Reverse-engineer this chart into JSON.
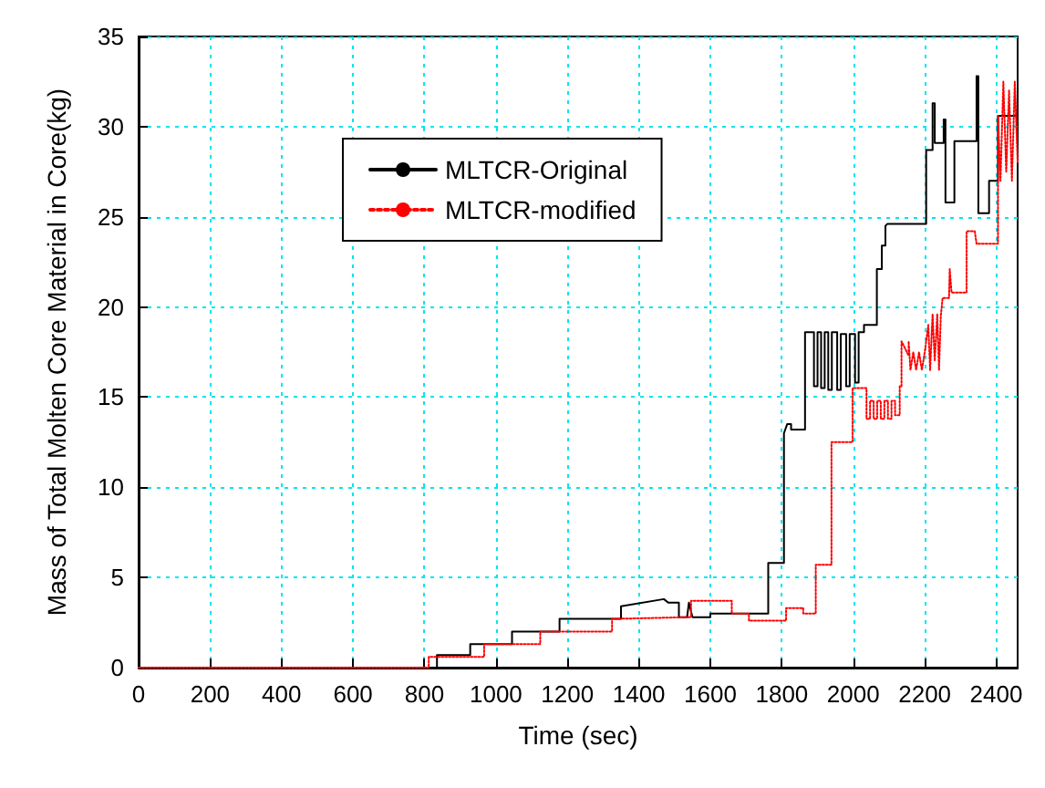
{
  "chart_data": {
    "type": "line",
    "xlabel": "Time (sec)",
    "ylabel": "Mass of Total Molten Core Material in Core(kg)",
    "xlim": [
      0,
      2460
    ],
    "xticks": [
      0,
      200,
      400,
      600,
      800,
      1000,
      1200,
      1400,
      1600,
      1800,
      2000,
      2200,
      2400
    ],
    "ylim": [
      0,
      35
    ],
    "yticks": [
      0,
      5,
      10,
      15,
      20,
      25,
      30,
      35
    ],
    "grid": true,
    "legend": "top",
    "marker": "none",
    "series": [
      {
        "name": "MLTCR-Original",
        "color": "#000000",
        "line_style": "solid",
        "x": [
          0,
          835,
          835,
          928,
          928,
          1045,
          1045,
          1178,
          1178,
          1350,
          1350,
          1470,
          1482,
          1512,
          1512,
          1535,
          1540,
          1550,
          1600,
          1600,
          1762,
          1762,
          1806,
          1806,
          1815,
          1826,
          1826,
          1865,
          1865,
          1890,
          1890,
          1900,
          1900,
          1910,
          1910,
          1920,
          1920,
          1930,
          1930,
          1940,
          1940,
          1955,
          1955,
          1965,
          1965,
          1980,
          1980,
          1990,
          1990,
          2005,
          2005,
          2015,
          2015,
          2030,
          2030,
          2066,
          2066,
          2080,
          2080,
          2090,
          2090,
          2095,
          2204,
          2204,
          2222,
          2222,
          2228,
          2228,
          2253,
          2253,
          2258,
          2258,
          2283,
          2283,
          2345,
          2345,
          2350,
          2350,
          2380,
          2380,
          2405,
          2405,
          2460
        ],
        "values": [
          0,
          0,
          0.7,
          0.7,
          1.3,
          1.3,
          2.0,
          2.0,
          2.7,
          2.7,
          3.4,
          3.8,
          3.6,
          3.6,
          2.8,
          2.8,
          3.6,
          2.8,
          2.8,
          3.0,
          3.0,
          5.8,
          5.8,
          13.0,
          13.5,
          13.5,
          13.2,
          13.2,
          18.6,
          18.6,
          15.6,
          15.6,
          18.6,
          18.6,
          15.5,
          15.5,
          18.6,
          18.6,
          15.4,
          15.4,
          18.6,
          18.6,
          15.4,
          15.4,
          18.5,
          18.5,
          15.6,
          15.6,
          18.5,
          18.5,
          15.8,
          15.8,
          18.6,
          18.6,
          19.0,
          19.0,
          22.1,
          22.1,
          23.4,
          23.4,
          24.5,
          24.6,
          24.6,
          28.7,
          28.7,
          31.3,
          31.3,
          29.1,
          29.1,
          30.4,
          30.4,
          25.8,
          25.8,
          29.2,
          29.2,
          32.8,
          32.8,
          25.2,
          25.2,
          27.0,
          27.0,
          30.6,
          30.6
        ]
      },
      {
        "name": "MLTCR-modified",
        "color": "#ff0000",
        "line_style": "dotted",
        "x": [
          0,
          812,
          812,
          967,
          967,
          1124,
          1124,
          1325,
          1325,
          1546,
          1546,
          1660,
          1660,
          1708,
          1708,
          1812,
          1812,
          1860,
          1860,
          1895,
          1895,
          1939,
          1939,
          1998,
          1998,
          2037,
          2037,
          2047,
          2047,
          2057,
          2057,
          2067,
          2067,
          2077,
          2077,
          2087,
          2087,
          2097,
          2097,
          2107,
          2107,
          2117,
          2117,
          2130,
          2130,
          2135,
          2135,
          2155,
          2155,
          2160,
          2168,
          2176,
          2184,
          2192,
          2200,
          2210,
          2215,
          2222,
          2228,
          2235,
          2240,
          2245,
          2250,
          2268,
          2270,
          2275,
          2317,
          2317,
          2340,
          2345,
          2405,
          2405,
          2412,
          2420,
          2428,
          2436,
          2444,
          2452,
          2460
        ],
        "values": [
          0,
          0,
          0.6,
          0.6,
          1.3,
          1.3,
          2.0,
          2.0,
          2.7,
          2.8,
          3.7,
          3.7,
          3.0,
          3.0,
          2.6,
          2.6,
          3.3,
          3.3,
          3.0,
          3.0,
          5.7,
          5.7,
          12.5,
          12.5,
          15.5,
          15.5,
          13.8,
          13.8,
          14.8,
          14.8,
          13.8,
          13.8,
          14.8,
          14.8,
          13.8,
          13.8,
          14.8,
          14.8,
          13.8,
          13.8,
          14.8,
          14.8,
          14.0,
          14.0,
          15.6,
          15.6,
          18.1,
          17.3,
          18.1,
          16.5,
          17.5,
          16.5,
          17.5,
          16.5,
          17.5,
          19.0,
          16.5,
          19.6,
          17.0,
          19.6,
          16.5,
          19.5,
          20.5,
          20.5,
          22.1,
          20.8,
          20.8,
          24.2,
          24.2,
          23.5,
          23.5,
          30.6,
          27.0,
          32.5,
          27.5,
          32.0,
          27.0,
          32.5,
          28.0
        ]
      }
    ]
  }
}
